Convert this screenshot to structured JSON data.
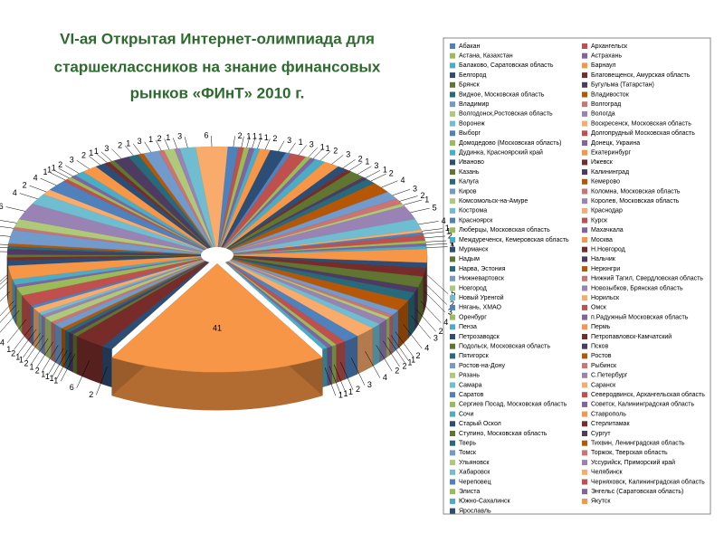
{
  "chart_data": {
    "type": "pie3d",
    "title": [
      "VI-ая Открытая Интернет-олимпиада для",
      "старшеклассников на знание финансовых",
      "рынков «ФИнТ» 2010 г."
    ],
    "categories": [
      "Абакан",
      "Архангельск",
      "Астана, Казахстан",
      "Астрахань",
      "Балаково, Саратовская область",
      "Барнаул",
      "Белгород",
      "Благовещенск, Амурская область",
      "Брянск",
      "Бугульма (Татарстан)",
      "Видное, Московская область",
      "Владивосток",
      "Владимир",
      "Волгоград",
      "Волгодонск,Ростовская область",
      "Вологда",
      "Воронеж",
      "Воскресенск, Московская область",
      "Выборг",
      "Долгопрудный Московская область",
      "Домодедово (Московская область)",
      "Донецк, Украина",
      "Дудинка, Красноярский край",
      "Екатеринбург",
      "Иваново",
      "Ижевск",
      "Казань",
      "Калининград",
      "Калуга",
      "Кемерово",
      "Киров",
      "Коломна, Московская область",
      "Комсомольск-на-Амуре",
      "Королев, Московская область",
      "Кострома",
      "Краснодар",
      "Красноярск",
      "Курск",
      "Люберцы, Московская область",
      "Махачкала",
      "Междуреченск, Кемеровская область",
      "Москва",
      "Мурманск",
      "Н.Новгород",
      "Надым",
      "Нальчик",
      "Нарва, Эстония",
      "Нерюнгри",
      "Нижневартовск",
      "Нижний Тагил, Свердловская область",
      "Новгород",
      "Новозыбков, Брянская область",
      "Новый Уренгой",
      "Норильск",
      "Нягань, ХМАО",
      "Омск",
      "Оренбург",
      "п.Радужный Московская область",
      "Пенза",
      "Пермь",
      "Петрозаводск",
      "Петропавловск-Камчатский",
      "Подольск, Московская область",
      "Псков",
      "Пятигорск",
      "Ростов",
      "Ростов-на-Дону",
      "Рыбинск",
      "Рязань",
      "С.Петербург",
      "Самара",
      "Саранск",
      "Саратов",
      "Северодвинск, Архангельская область",
      "Сергиев Посад, Московская область",
      "Советск, Калининградская область",
      "Сочи",
      "Ставрополь",
      "Старый Оскол",
      "Стерлитамак",
      "Ступино, Московская область",
      "Сургут",
      "Тверь",
      "Тихвин, Ленинградская область",
      "Томск",
      "Торжок, Тверская область",
      "Ульяновск",
      "Уссурийск, Приморский край",
      "Хабаровск",
      "Челябинск",
      "Череповец",
      "Черняховск, Калининградская область",
      "Элиста",
      "Энгельс (Саратовская область)",
      "Южно-Сахалинск",
      "Якутск",
      "Ярославль"
    ],
    "values": [
      1,
      3,
      1,
      1,
      2,
      3,
      2,
      1,
      3,
      1,
      2,
      4,
      3,
      2,
      1,
      5,
      4,
      1,
      1,
      2,
      1,
      1,
      1,
      5,
      2,
      3,
      4,
      2,
      3,
      4,
      2,
      1,
      1,
      2,
      2,
      4,
      3,
      2,
      1,
      1,
      1,
      41,
      2,
      6,
      1,
      1,
      1,
      1,
      2,
      1,
      2,
      1,
      1,
      2,
      1,
      4,
      3,
      1,
      2,
      5,
      2,
      1,
      1,
      2,
      1,
      1,
      5,
      1,
      3,
      6,
      4,
      2,
      4,
      1,
      1,
      1,
      2,
      3,
      2,
      1,
      1,
      3,
      2,
      1,
      3,
      1,
      2,
      1,
      3,
      6,
      2,
      1,
      1,
      1,
      1,
      2,
      3
    ],
    "colors": [
      "#4f81bd",
      "#c0504d",
      "#9bbb59",
      "#8064a2",
      "#4bacc6",
      "#f79646",
      "#2c4d75",
      "#772c2a",
      "#5f7530",
      "#4d3b62",
      "#276a7c",
      "#b65708",
      "#729aca",
      "#cd7371",
      "#afc97a",
      "#9983b5",
      "#6fbdd1",
      "#f9ab6b"
    ]
  }
}
